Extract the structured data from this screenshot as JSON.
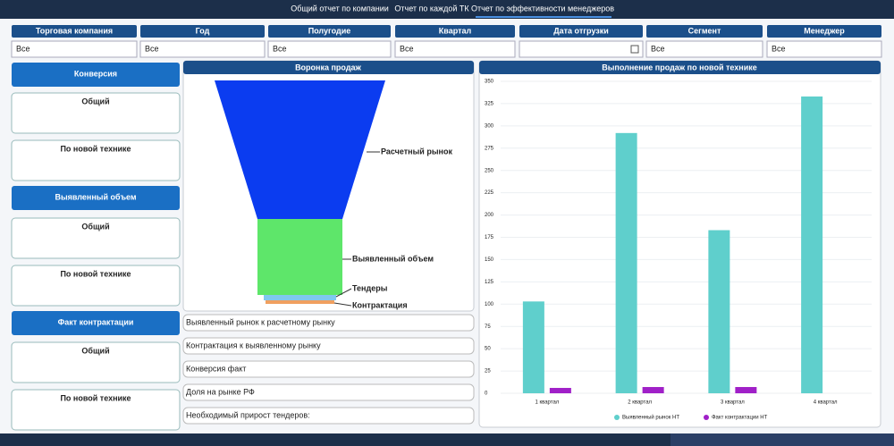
{
  "nav": {
    "tabs": [
      "Общий отчет по компании",
      "Отчет по каждой ТК",
      "Отчет по эффективности менеджеров"
    ]
  },
  "filters": [
    {
      "label": "Торговая компания",
      "value": "Все"
    },
    {
      "label": "Год",
      "value": "Все"
    },
    {
      "label": "Полугодие",
      "value": "Все"
    },
    {
      "label": "Квартал",
      "value": "Все"
    },
    {
      "label": "Дата отгрузки"
    },
    {
      "label": "Сегмент",
      "value": "Все"
    },
    {
      "label": "Менеджер",
      "value": "Все"
    }
  ],
  "cards": [
    {
      "title": "Конверсия",
      "items": [
        "Общий",
        "По новой технике"
      ]
    },
    {
      "title": "Выявленный объем",
      "items": [
        "Общий",
        "По новой технике"
      ]
    },
    {
      "title": "Факт контрактации",
      "items": [
        "Общий",
        "По новой технике"
      ]
    }
  ],
  "funnel": {
    "title": "Воронка продаж",
    "stages": [
      "Расчетный рынок",
      "Выявленный объем",
      "Тендеры",
      "Контрактация"
    ]
  },
  "kpis": [
    "Выявленный рынок к расчетному рынку",
    "Контрактация к выявленному рынку",
    "Конверсия факт",
    "Доля на рынке РФ",
    "Необходимый прирост тендеров:"
  ],
  "chart_data": {
    "type": "bar",
    "title": "Выполнение продаж по новой технике",
    "categories": [
      "1 квартал",
      "2 квартал",
      "3 квартал",
      "4 квартал"
    ],
    "series": [
      {
        "name": "Выявленный рынок НТ",
        "color": "#5fcfcc",
        "values": [
          103,
          292,
          183,
          333
        ]
      },
      {
        "name": "Факт контрактации НТ",
        "color": "#a020c8",
        "values": [
          6,
          7,
          7,
          0
        ]
      }
    ],
    "ylim": [
      0,
      350
    ],
    "yticks": [
      0,
      25,
      50,
      75,
      100,
      125,
      150,
      175,
      200,
      225,
      250,
      275,
      300,
      325,
      350
    ],
    "grid": true,
    "legend": "bottom"
  }
}
